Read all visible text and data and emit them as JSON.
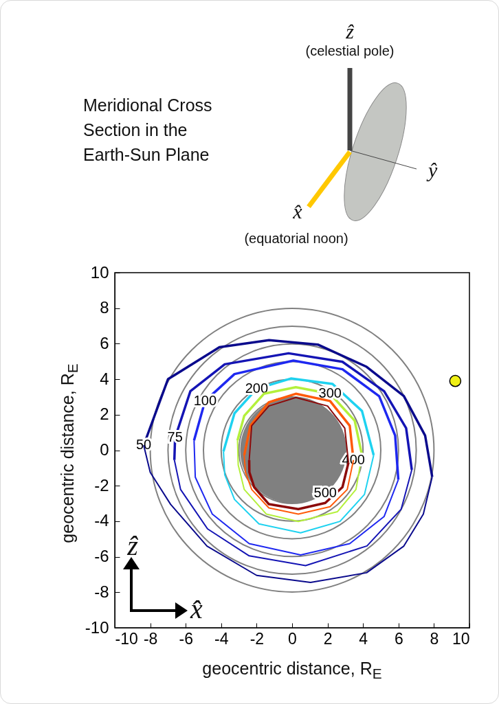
{
  "chart_data": {
    "type": "line",
    "title": "Meridional Cross Section in the Earth-Sun Plane",
    "xlabel": "geocentric distance, R$_{E}$",
    "ylabel": "geocentric distance, R$_{E}$",
    "xlim": [
      -10,
      10
    ],
    "ylim": [
      -10,
      10
    ],
    "xticks": [
      -10,
      -8,
      -6,
      -4,
      -2,
      0,
      2,
      4,
      6,
      8,
      10
    ],
    "yticks": [
      -10,
      -8,
      -6,
      -4,
      -2,
      0,
      2,
      4,
      6,
      8,
      10
    ],
    "annotations": [
      "ẑ",
      "(celestial pole)",
      "ŷ",
      "x̂",
      "(equatorial noon)",
      "ẑ",
      "x̂"
    ],
    "series": [
      {
        "name": "50",
        "color": "#0a0a8c",
        "x": [
          -8.37,
          -7.0,
          -4.1,
          -1.3,
          1.45,
          4.2,
          6.3,
          7.5,
          7.9
        ],
        "values": [
          0.28,
          4.0,
          5.8,
          6.2,
          5.95,
          4.7,
          3.05,
          0.83,
          -1.5
        ]
      },
      {
        "color": "#0a0a8c",
        "x": [
          -8.37,
          -8.0,
          -6.85,
          -4.8,
          -2.0,
          1.04,
          4.2,
          6.3,
          7.4,
          7.9
        ],
        "values": [
          0.28,
          -1.25,
          -3.05,
          -5.4,
          -7.05,
          -7.45,
          -6.9,
          -5.4,
          -3.6,
          -1.5
        ]
      },
      {
        "name": "75",
        "color": "#1414b4",
        "x": [
          -6.64,
          -6.6,
          -5.74,
          -3.8,
          -0.2,
          2.84,
          5.19,
          6.43,
          6.75
        ],
        "values": [
          -0.55,
          0.7,
          3.32,
          4.84,
          5.46,
          4.98,
          3.32,
          1.24,
          -1.1
        ]
      },
      {
        "color": "#1414b4",
        "x": [
          -6.64,
          -6.29,
          -4.77,
          -2.42,
          0.76,
          4.22,
          6.15,
          6.75
        ],
        "values": [
          -0.55,
          -2.21,
          -4.43,
          -5.95,
          -6.5,
          -5.39,
          -3.32,
          -1.1
        ]
      },
      {
        "name": "100",
        "color": "#1e28f0",
        "x": [
          -5.53,
          -4.91,
          -3.25,
          0.07,
          2.84,
          4.91,
          5.81,
          5.99
        ],
        "values": [
          0.55,
          2.77,
          4.29,
          5.05,
          4.56,
          3.04,
          0.83,
          -1.66
        ]
      },
      {
        "color": "#1e28f0",
        "x": [
          -5.53,
          -5.46,
          -4.5,
          -2.42,
          0.48,
          3.25,
          5.19,
          5.99
        ],
        "values": [
          0.55,
          -1.52,
          -3.6,
          -5.26,
          -5.9,
          -5.26,
          -3.73,
          -1.66
        ]
      },
      {
        "name": "200",
        "color": "#1ed2f0",
        "x": [
          -3.87,
          -3.25,
          -2.0,
          -0.07,
          2.28,
          3.94,
          4.6
        ],
        "values": [
          -0.07,
          2.08,
          3.46,
          4.04,
          3.73,
          2.21,
          -0.28
        ]
      },
      {
        "color": "#1ed2f0",
        "x": [
          -3.87,
          -3.8,
          -3.25,
          -1.87,
          0.48,
          2.7,
          4.08,
          4.6
        ],
        "values": [
          -0.07,
          -1.38,
          -2.77,
          -4.15,
          -4.65,
          -4.01,
          -2.49,
          -0.28
        ]
      },
      {
        "name": "300",
        "color": "#b4f03c",
        "x": [
          -3.08,
          -2.7,
          -1.59,
          0.21,
          2.14,
          3.53,
          3.94
        ],
        "values": [
          0.55,
          1.94,
          3.18,
          3.55,
          3.18,
          1.66,
          -0.28
        ]
      },
      {
        "color": "#b4f03c",
        "x": [
          -3.08,
          -3.04,
          -2.7,
          -1.45,
          0.35,
          2.56,
          3.6,
          3.94
        ],
        "values": [
          0.55,
          -0.83,
          -2.21,
          -3.6,
          -4.01,
          -3.46,
          -2.21,
          -0.28
        ]
      },
      {
        "name": "400",
        "color": "#ff5a0a",
        "x": [
          -2.7,
          -2.35,
          -1.31,
          0.21,
          2.14,
          3.25,
          3.46
        ],
        "values": [
          -0.28,
          1.38,
          2.7,
          3.18,
          2.77,
          1.38,
          -0.55
        ]
      },
      {
        "color": "#ff5a0a",
        "x": [
          -2.7,
          -2.63,
          -2.28,
          -1.31,
          0.35,
          2.14,
          3.11,
          3.46
        ],
        "values": [
          -0.28,
          -1.24,
          -2.21,
          -3.25,
          -3.6,
          -3.18,
          -2.21,
          -0.55
        ]
      },
      {
        "color": "#8c0a0a",
        "x": [
          -2.42,
          -2.28,
          -1.31,
          0.21,
          2.0,
          2.97,
          3.18
        ],
        "values": [
          -0.55,
          1.38,
          2.49,
          2.97,
          2.49,
          1.24,
          -0.69
        ]
      },
      {
        "name": "500",
        "color": "#8c0a0a",
        "x": [
          -2.42,
          -2.41,
          -2.14,
          -1.31,
          0.35,
          1.87,
          2.84,
          3.18
        ],
        "values": [
          -0.55,
          -1.24,
          -2.08,
          -3.04,
          -3.32,
          -2.97,
          -2.08,
          -0.69
        ]
      },
      {
        "type": "scatter",
        "marker": "circle",
        "color": "#f0f014",
        "x": [
          9.2
        ],
        "values": [
          3.9
        ]
      }
    ]
  }
}
